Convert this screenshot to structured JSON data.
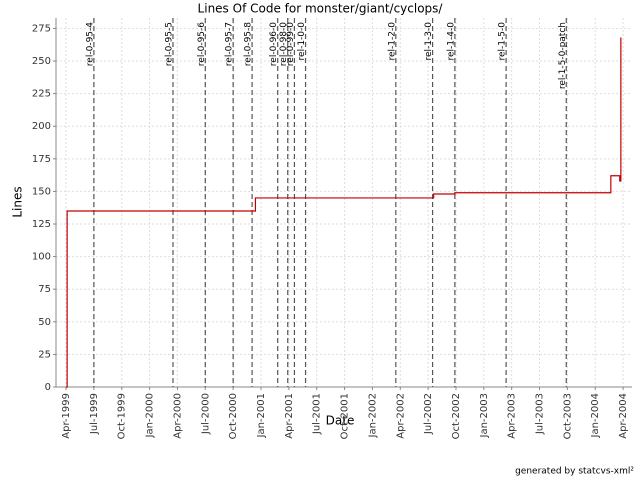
{
  "chart_data": {
    "type": "step",
    "title": "Lines Of Code for monster/giant/cyclops/",
    "x_label": "Date",
    "y_label": "Lines",
    "footer": "generated by statcvs-xml²",
    "series": [
      {
        "name": "Lines",
        "color": "#c00000",
        "x": [
          1999.25,
          1999.26,
          2000.95,
          2002.55,
          2002.74,
          2004.14,
          2004.22,
          2004.23
        ],
        "values": [
          0,
          135,
          145,
          148,
          149,
          162,
          158,
          268
        ]
      }
    ],
    "markers": [
      {
        "x": 1999.5,
        "label": "rel-0-95-4"
      },
      {
        "x": 2000.21,
        "label": "rel-0-95-5"
      },
      {
        "x": 2000.5,
        "label": "rel-0-95-6"
      },
      {
        "x": 2000.75,
        "label": "rel-0-95-7"
      },
      {
        "x": 2000.92,
        "label": "rel-0-95-8"
      },
      {
        "x": 2001.15,
        "label": "rel-0-96-0"
      },
      {
        "x": 2001.24,
        "label": "rel-0-98-0"
      },
      {
        "x": 2001.3,
        "label": "rel-0-99-0"
      },
      {
        "x": 2001.4,
        "label": "rel-1-0-0"
      },
      {
        "x": 2002.21,
        "label": "rel-1-2-0"
      },
      {
        "x": 2002.54,
        "label": "rel-1-3-0"
      },
      {
        "x": 2002.74,
        "label": "rel-1-4-0"
      },
      {
        "x": 2003.2,
        "label": "rel-1-5-0"
      },
      {
        "x": 2003.74,
        "label": "rel-1-5-0-patch"
      }
    ],
    "xlim": [
      1999.16,
      2004.33
    ],
    "xticks": [
      {
        "value": 1999.25,
        "label": "Apr-1999"
      },
      {
        "value": 1999.5,
        "label": "Jul-1999"
      },
      {
        "value": 1999.75,
        "label": "Oct-1999"
      },
      {
        "value": 2000,
        "label": "Jan-2000"
      },
      {
        "value": 2000.25,
        "label": "Apr-2000"
      },
      {
        "value": 2000.5,
        "label": "Jul-2000"
      },
      {
        "value": 2000.75,
        "label": "Oct-2000"
      },
      {
        "value": 2001,
        "label": "Jan-2001"
      },
      {
        "value": 2001.25,
        "label": "Apr-2001"
      },
      {
        "value": 2001.5,
        "label": "Jul-2001"
      },
      {
        "value": 2001.75,
        "label": "Oct-2001"
      },
      {
        "value": 2002,
        "label": "Jan-2002"
      },
      {
        "value": 2002.25,
        "label": "Apr-2002"
      },
      {
        "value": 2002.5,
        "label": "Jul-2002"
      },
      {
        "value": 2002.75,
        "label": "Oct-2002"
      },
      {
        "value": 2003,
        "label": "Jan-2003"
      },
      {
        "value": 2003.25,
        "label": "Apr-2003"
      },
      {
        "value": 2003.5,
        "label": "Jul-2003"
      },
      {
        "value": 2003.75,
        "label": "Oct-2003"
      },
      {
        "value": 2004,
        "label": "Jan-2004"
      },
      {
        "value": 2004.25,
        "label": "Apr-2004"
      }
    ],
    "ylim": [
      0,
      283
    ],
    "yticks": [
      0,
      25,
      50,
      75,
      100,
      125,
      150,
      175,
      200,
      225,
      250,
      275
    ],
    "grid": true
  }
}
